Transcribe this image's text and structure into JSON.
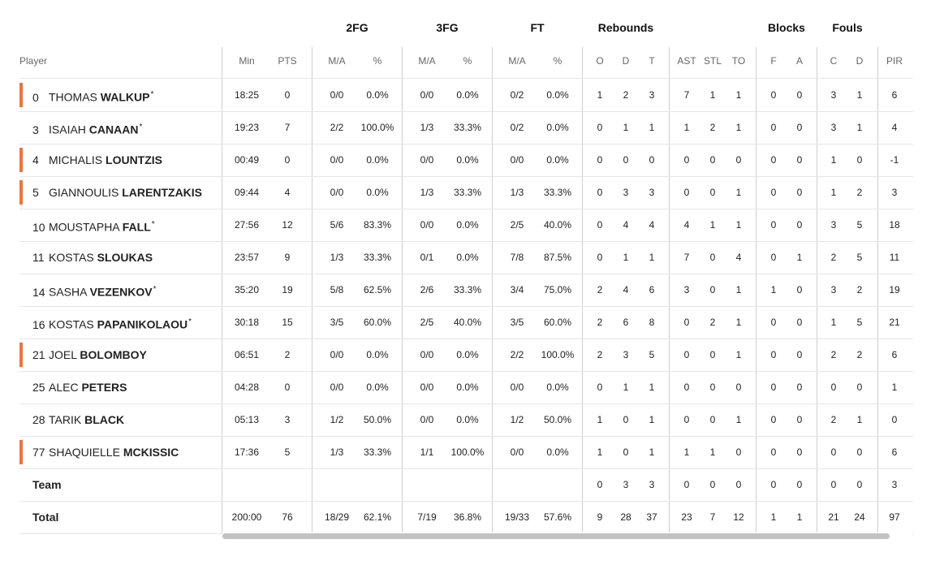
{
  "groups": [
    {
      "label": "2FG"
    },
    {
      "label": "3FG"
    },
    {
      "label": "FT"
    },
    {
      "label": "Rebounds"
    },
    {
      "label": "Blocks"
    },
    {
      "label": "Fouls"
    }
  ],
  "headers": {
    "player": "Player",
    "columns": [
      "Min",
      "PTS",
      "M/A",
      "%",
      "M/A",
      "%",
      "M/A",
      "%",
      "O",
      "D",
      "T",
      "AST",
      "STL",
      "TO",
      "F",
      "A",
      "C",
      "D",
      "PIR"
    ]
  },
  "rows": [
    {
      "num": "0",
      "first": "THOMAS",
      "last": "WALKUP",
      "star": "*",
      "bar": true,
      "stats": [
        "18:25",
        "0",
        "0/0",
        "0.0%",
        "0/0",
        "0.0%",
        "0/2",
        "0.0%",
        "1",
        "2",
        "3",
        "7",
        "1",
        "1",
        "0",
        "0",
        "3",
        "1",
        "6"
      ]
    },
    {
      "num": "3",
      "first": "ISAIAH",
      "last": "CANAAN",
      "star": "*",
      "bar": false,
      "stats": [
        "19:23",
        "7",
        "2/2",
        "100.0%",
        "1/3",
        "33.3%",
        "0/2",
        "0.0%",
        "0",
        "1",
        "1",
        "1",
        "2",
        "1",
        "0",
        "0",
        "3",
        "1",
        "4"
      ]
    },
    {
      "num": "4",
      "first": "MICHALIS",
      "last": "LOUNTZIS",
      "star": "",
      "bar": true,
      "stats": [
        "00:49",
        "0",
        "0/0",
        "0.0%",
        "0/0",
        "0.0%",
        "0/0",
        "0.0%",
        "0",
        "0",
        "0",
        "0",
        "0",
        "0",
        "0",
        "0",
        "1",
        "0",
        "-1"
      ]
    },
    {
      "num": "5",
      "first": "GIANNOULIS",
      "last": "LARENTZAKIS",
      "star": "",
      "bar": true,
      "stats": [
        "09:44",
        "4",
        "0/0",
        "0.0%",
        "1/3",
        "33.3%",
        "1/3",
        "33.3%",
        "0",
        "3",
        "3",
        "0",
        "0",
        "1",
        "0",
        "0",
        "1",
        "2",
        "3"
      ]
    },
    {
      "num": "10",
      "first": "MOUSTAPHA",
      "last": "FALL",
      "star": "*",
      "bar": false,
      "stats": [
        "27:56",
        "12",
        "5/6",
        "83.3%",
        "0/0",
        "0.0%",
        "2/5",
        "40.0%",
        "0",
        "4",
        "4",
        "4",
        "1",
        "1",
        "0",
        "0",
        "3",
        "5",
        "18"
      ]
    },
    {
      "num": "11",
      "first": "KOSTAS",
      "last": "SLOUKAS",
      "star": "",
      "bar": false,
      "stats": [
        "23:57",
        "9",
        "1/3",
        "33.3%",
        "0/1",
        "0.0%",
        "7/8",
        "87.5%",
        "0",
        "1",
        "1",
        "7",
        "0",
        "4",
        "0",
        "1",
        "2",
        "5",
        "11"
      ]
    },
    {
      "num": "14",
      "first": "SASHA",
      "last": "VEZENKOV",
      "star": "*",
      "bar": false,
      "stats": [
        "35:20",
        "19",
        "5/8",
        "62.5%",
        "2/6",
        "33.3%",
        "3/4",
        "75.0%",
        "2",
        "4",
        "6",
        "3",
        "0",
        "1",
        "1",
        "0",
        "3",
        "2",
        "19"
      ]
    },
    {
      "num": "16",
      "first": "KOSTAS",
      "last": "PAPANIKOLAOU",
      "star": "*",
      "bar": false,
      "stats": [
        "30:18",
        "15",
        "3/5",
        "60.0%",
        "2/5",
        "40.0%",
        "3/5",
        "60.0%",
        "2",
        "6",
        "8",
        "0",
        "2",
        "1",
        "0",
        "0",
        "1",
        "5",
        "21"
      ]
    },
    {
      "num": "21",
      "first": "JOEL",
      "last": "BOLOMBOY",
      "star": "",
      "bar": true,
      "stats": [
        "06:51",
        "2",
        "0/0",
        "0.0%",
        "0/0",
        "0.0%",
        "2/2",
        "100.0%",
        "2",
        "3",
        "5",
        "0",
        "0",
        "1",
        "0",
        "0",
        "2",
        "2",
        "6"
      ]
    },
    {
      "num": "25",
      "first": "ALEC",
      "last": "PETERS",
      "star": "",
      "bar": false,
      "stats": [
        "04:28",
        "0",
        "0/0",
        "0.0%",
        "0/0",
        "0.0%",
        "0/0",
        "0.0%",
        "0",
        "1",
        "1",
        "0",
        "0",
        "0",
        "0",
        "0",
        "0",
        "0",
        "1"
      ]
    },
    {
      "num": "28",
      "first": "TARIK",
      "last": "BLACK",
      "star": "",
      "bar": false,
      "stats": [
        "05:13",
        "3",
        "1/2",
        "50.0%",
        "0/0",
        "0.0%",
        "1/2",
        "50.0%",
        "1",
        "0",
        "1",
        "0",
        "0",
        "1",
        "0",
        "0",
        "2",
        "1",
        "0"
      ]
    },
    {
      "num": "77",
      "first": "SHAQUIELLE",
      "last": "MCKISSIC",
      "star": "",
      "bar": true,
      "stats": [
        "17:36",
        "5",
        "1/3",
        "33.3%",
        "1/1",
        "100.0%",
        "0/0",
        "0.0%",
        "1",
        "0",
        "1",
        "1",
        "1",
        "0",
        "0",
        "0",
        "0",
        "0",
        "6"
      ]
    }
  ],
  "team": {
    "label": "Team",
    "stats": [
      "",
      "",
      "",
      "",
      "",
      "",
      "",
      "",
      "0",
      "3",
      "3",
      "0",
      "0",
      "0",
      "0",
      "0",
      "0",
      "0",
      "3"
    ]
  },
  "total": {
    "label": "Total",
    "stats": [
      "200:00",
      "76",
      "18/29",
      "62.1%",
      "7/19",
      "36.8%",
      "19/33",
      "57.6%",
      "9",
      "28",
      "37",
      "23",
      "7",
      "12",
      "1",
      "1",
      "21",
      "24",
      "97"
    ]
  },
  "colors": {
    "starter_bar": "#f0733a",
    "grid_line": "#cfcfcf",
    "row_line": "#e6e6e6",
    "scrollbar": "#c2c2c2"
  }
}
